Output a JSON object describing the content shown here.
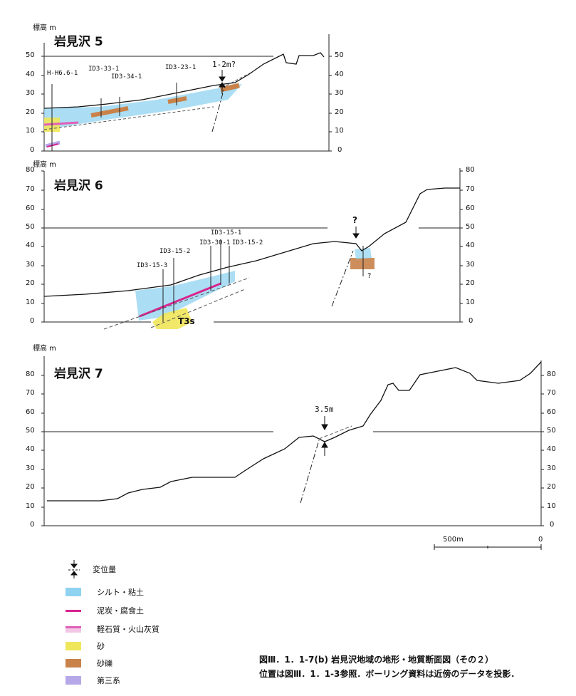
{
  "unit_label": "標高 m",
  "profiles": [
    {
      "title": "岩見沢 5",
      "yticks": [
        "50",
        "40",
        "30",
        "20",
        "10",
        "0"
      ],
      "boreholes": [
        "H-H6.6-1",
        "ID3-33-1",
        "ID3-34-1",
        "ID3-23-1"
      ],
      "displacement": "1-2m?"
    },
    {
      "title": "岩見沢 6",
      "yticks": [
        "80",
        "70",
        "60",
        "50",
        "40",
        "30",
        "20",
        "10",
        "0"
      ],
      "boreholes": [
        "ID3-15-3",
        "ID3-15-2",
        "ID3-30-1",
        "ID3-15-1",
        "ID3-15-2"
      ],
      "displacement": "?",
      "question_mark": "?",
      "unit_tag": "T3s"
    },
    {
      "title": "岩見沢 7",
      "yticks": [
        "80",
        "70",
        "60",
        "50",
        "40",
        "30",
        "20",
        "10",
        "0"
      ],
      "displacement": "3.5m"
    }
  ],
  "scale": {
    "label": "500m",
    "zero": "0"
  },
  "legend": {
    "displacement_label": "変位量",
    "items": [
      {
        "label": "シルト・粘土",
        "color": "#8fd3f0"
      },
      {
        "label": "泥炭・腐食土",
        "color": "#d8248f"
      },
      {
        "label": "軽石質・火山灰質",
        "color": "#e060b8"
      },
      {
        "label": "砂",
        "color": "#f0e65a"
      },
      {
        "label": "砂礫",
        "color": "#c9824a"
      },
      {
        "label": "第三系",
        "color": "#b6a8e8"
      }
    ]
  },
  "caption": {
    "line1": "図Ⅲ．1．1-7(b) 岩見沢地域の地形・地質断面図（その２）",
    "line2": "位置は図Ⅲ．1．1-3参照．ボーリング資料は近傍のデータを投影．"
  }
}
